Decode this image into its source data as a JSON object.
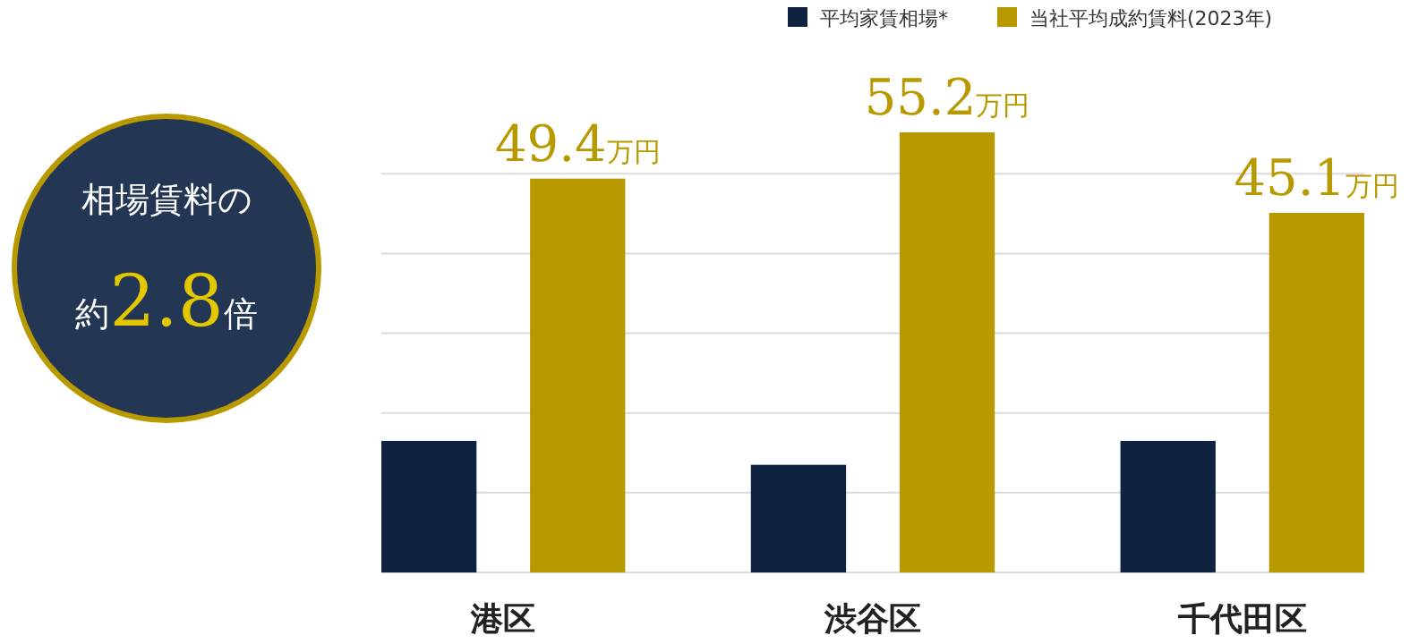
{
  "chart_data": {
    "type": "bar",
    "relative": false,
    "categories": [
      "港区",
      "渋谷区",
      "千代田区"
    ],
    "series": [
      {
        "name": "平均家賃相場*",
        "color": "#0f2340",
        "values": [
          16.5,
          13.5,
          16.5
        ]
      },
      {
        "name": "当社平均成約賃料(2023年)",
        "color": "#b89a00",
        "values": [
          49.4,
          55.2,
          45.1
        ],
        "value_labels": [
          "49.4万円",
          "55.2万円",
          "45.1万円"
        ]
      }
    ],
    "yticks": [
      {
        "value": 0,
        "label": null
      },
      {
        "value": 10,
        "label": null
      },
      {
        "value": 20,
        "label": null
      },
      {
        "value": 30,
        "label": null
      },
      {
        "value": 40,
        "label": null
      },
      {
        "value": 50,
        "label": null
      }
    ],
    "grid": "y",
    "tick_labels": "x",
    "legend": "top right",
    "annotations": [
      "相場賃料の",
      "約2.8倍"
    ]
  }
}
